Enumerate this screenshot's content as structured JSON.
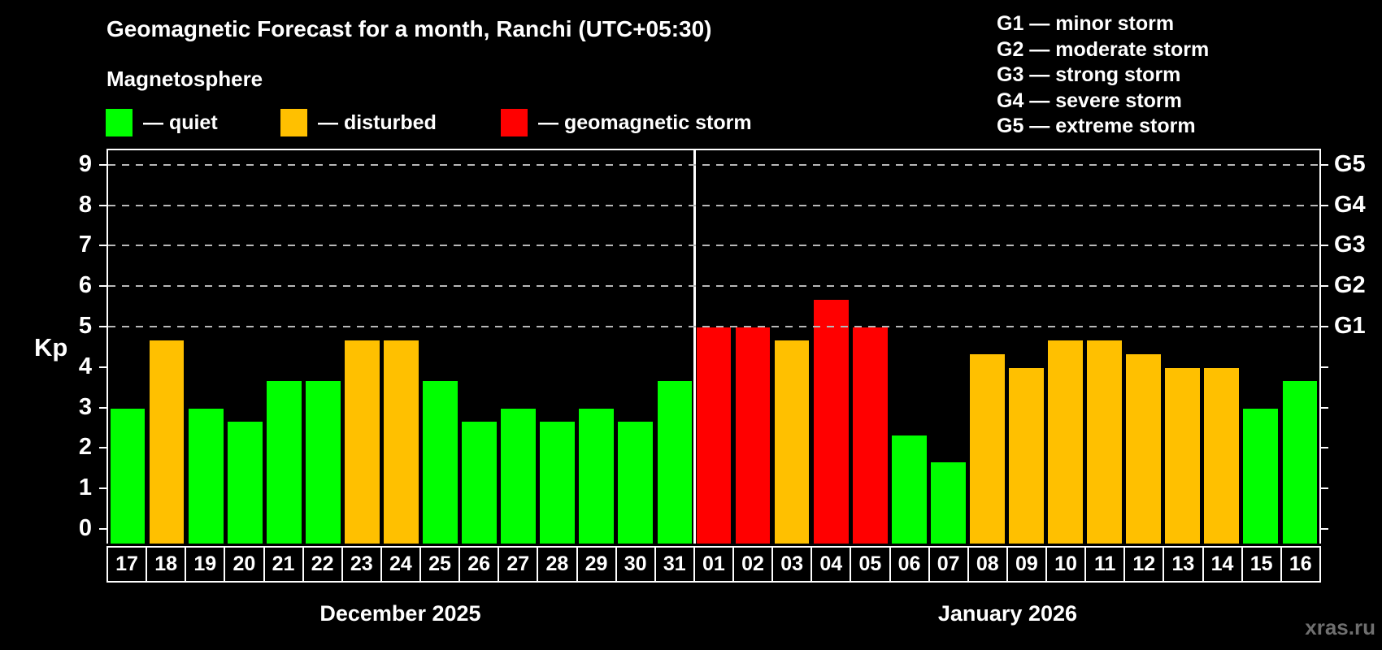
{
  "header": {
    "title": "Geomagnetic Forecast for a month, Ranchi (UTC+05:30)",
    "subtitle": "Magnetosphere"
  },
  "legend": {
    "items": [
      {
        "key": "quiet",
        "label": "— quiet",
        "color": "#00ff00"
      },
      {
        "key": "disturbed",
        "label": "— disturbed",
        "color": "#ffc000"
      },
      {
        "key": "storm",
        "label": "— geomagnetic storm",
        "color": "#ff0000"
      }
    ]
  },
  "g_legend": [
    "G1 — minor storm",
    "G2 — moderate storm",
    "G3 — strong storm",
    "G4 — severe storm",
    "G5 — extreme storm"
  ],
  "watermark": "xras.ru",
  "chart_data": {
    "type": "bar",
    "title": "Geomagnetic Forecast for a month, Ranchi (UTC+05:30)",
    "ylabel": "Kp",
    "ylim": [
      0,
      9
    ],
    "yticks": [
      0,
      1,
      2,
      3,
      4,
      5,
      6,
      7,
      8,
      9
    ],
    "gridline_levels": [
      5,
      6,
      7,
      8,
      9
    ],
    "right_axis": {
      "5": "G1",
      "6": "G2",
      "7": "G3",
      "8": "G4",
      "9": "G5"
    },
    "grid": "horizontal dashed gridlines at Kp 5-9 only",
    "legend_position": "top",
    "level_colors": {
      "quiet": "#00ff00",
      "disturbed": "#ffc000",
      "storm": "#ff0000"
    },
    "months": [
      {
        "label": "December 2025",
        "days": [
          "17",
          "18",
          "19",
          "20",
          "21",
          "22",
          "23",
          "24",
          "25",
          "26",
          "27",
          "28",
          "29",
          "30",
          "31"
        ],
        "values": [
          3,
          4.67,
          3,
          2.67,
          3.67,
          3.67,
          4.67,
          4.67,
          3.67,
          2.67,
          3,
          2.67,
          3,
          2.67,
          3.67
        ],
        "levels": [
          "quiet",
          "disturbed",
          "quiet",
          "quiet",
          "quiet",
          "quiet",
          "disturbed",
          "disturbed",
          "quiet",
          "quiet",
          "quiet",
          "quiet",
          "quiet",
          "quiet",
          "quiet"
        ]
      },
      {
        "label": "January 2026",
        "days": [
          "01",
          "02",
          "03",
          "04",
          "05",
          "06",
          "07",
          "08",
          "09",
          "10",
          "11",
          "12",
          "13",
          "14",
          "15",
          "16"
        ],
        "values": [
          5,
          5,
          4.67,
          5.67,
          5,
          2.33,
          1.67,
          4.33,
          4,
          4.67,
          4.67,
          4.33,
          4,
          4,
          3,
          3.67
        ],
        "levels": [
          "storm",
          "storm",
          "disturbed",
          "storm",
          "storm",
          "quiet",
          "quiet",
          "disturbed",
          "disturbed",
          "disturbed",
          "disturbed",
          "disturbed",
          "disturbed",
          "disturbed",
          "quiet",
          "quiet"
        ]
      }
    ]
  }
}
